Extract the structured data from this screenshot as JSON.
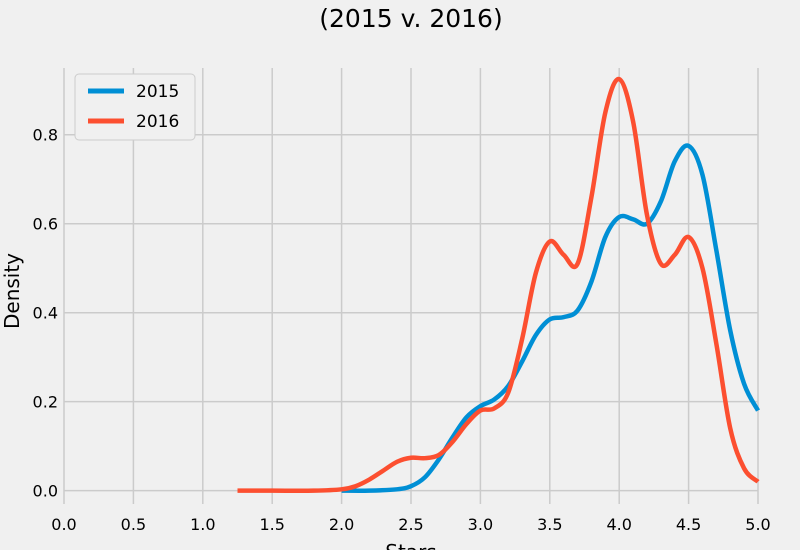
{
  "chart_data": {
    "type": "line",
    "title": "(2015 v. 2016)",
    "xlabel": "Stars",
    "ylabel": "Density",
    "xlim": [
      0.0,
      5.0
    ],
    "ylim": [
      -0.03,
      0.95
    ],
    "x_ticks": [
      "0.0",
      "0.5",
      "1.0",
      "1.5",
      "2.0",
      "2.5",
      "3.0",
      "3.5",
      "4.0",
      "4.5",
      "5.0"
    ],
    "y_ticks": [
      "0.0",
      "0.2",
      "0.4",
      "0.6",
      "0.8"
    ],
    "grid": true,
    "legend_position": "top-left",
    "series": [
      {
        "name": "2015",
        "color": "#008fd5",
        "points": [
          [
            2.0,
            0.0
          ],
          [
            2.2,
            0.0
          ],
          [
            2.4,
            0.003
          ],
          [
            2.5,
            0.01
          ],
          [
            2.6,
            0.03
          ],
          [
            2.7,
            0.07
          ],
          [
            2.8,
            0.12
          ],
          [
            2.9,
            0.165
          ],
          [
            3.0,
            0.19
          ],
          [
            3.1,
            0.205
          ],
          [
            3.2,
            0.235
          ],
          [
            3.3,
            0.29
          ],
          [
            3.4,
            0.35
          ],
          [
            3.5,
            0.385
          ],
          [
            3.6,
            0.39
          ],
          [
            3.7,
            0.405
          ],
          [
            3.8,
            0.47
          ],
          [
            3.9,
            0.57
          ],
          [
            4.0,
            0.615
          ],
          [
            4.1,
            0.61
          ],
          [
            4.2,
            0.6
          ],
          [
            4.3,
            0.65
          ],
          [
            4.4,
            0.74
          ],
          [
            4.5,
            0.775
          ],
          [
            4.6,
            0.71
          ],
          [
            4.7,
            0.54
          ],
          [
            4.8,
            0.36
          ],
          [
            4.9,
            0.24
          ],
          [
            5.0,
            0.18
          ]
        ]
      },
      {
        "name": "2016",
        "color": "#fc4f30",
        "points": [
          [
            1.25,
            0.0
          ],
          [
            1.5,
            0.0
          ],
          [
            1.8,
            0.0
          ],
          [
            2.0,
            0.003
          ],
          [
            2.1,
            0.01
          ],
          [
            2.2,
            0.025
          ],
          [
            2.3,
            0.045
          ],
          [
            2.4,
            0.065
          ],
          [
            2.5,
            0.074
          ],
          [
            2.6,
            0.073
          ],
          [
            2.7,
            0.08
          ],
          [
            2.8,
            0.11
          ],
          [
            2.9,
            0.15
          ],
          [
            3.0,
            0.18
          ],
          [
            3.1,
            0.185
          ],
          [
            3.2,
            0.22
          ],
          [
            3.3,
            0.34
          ],
          [
            3.4,
            0.49
          ],
          [
            3.5,
            0.56
          ],
          [
            3.6,
            0.53
          ],
          [
            3.7,
            0.51
          ],
          [
            3.8,
            0.66
          ],
          [
            3.9,
            0.85
          ],
          [
            4.0,
            0.925
          ],
          [
            4.1,
            0.83
          ],
          [
            4.2,
            0.62
          ],
          [
            4.3,
            0.51
          ],
          [
            4.4,
            0.53
          ],
          [
            4.5,
            0.57
          ],
          [
            4.6,
            0.5
          ],
          [
            4.7,
            0.33
          ],
          [
            4.8,
            0.14
          ],
          [
            4.9,
            0.05
          ],
          [
            5.0,
            0.02
          ]
        ]
      }
    ]
  }
}
